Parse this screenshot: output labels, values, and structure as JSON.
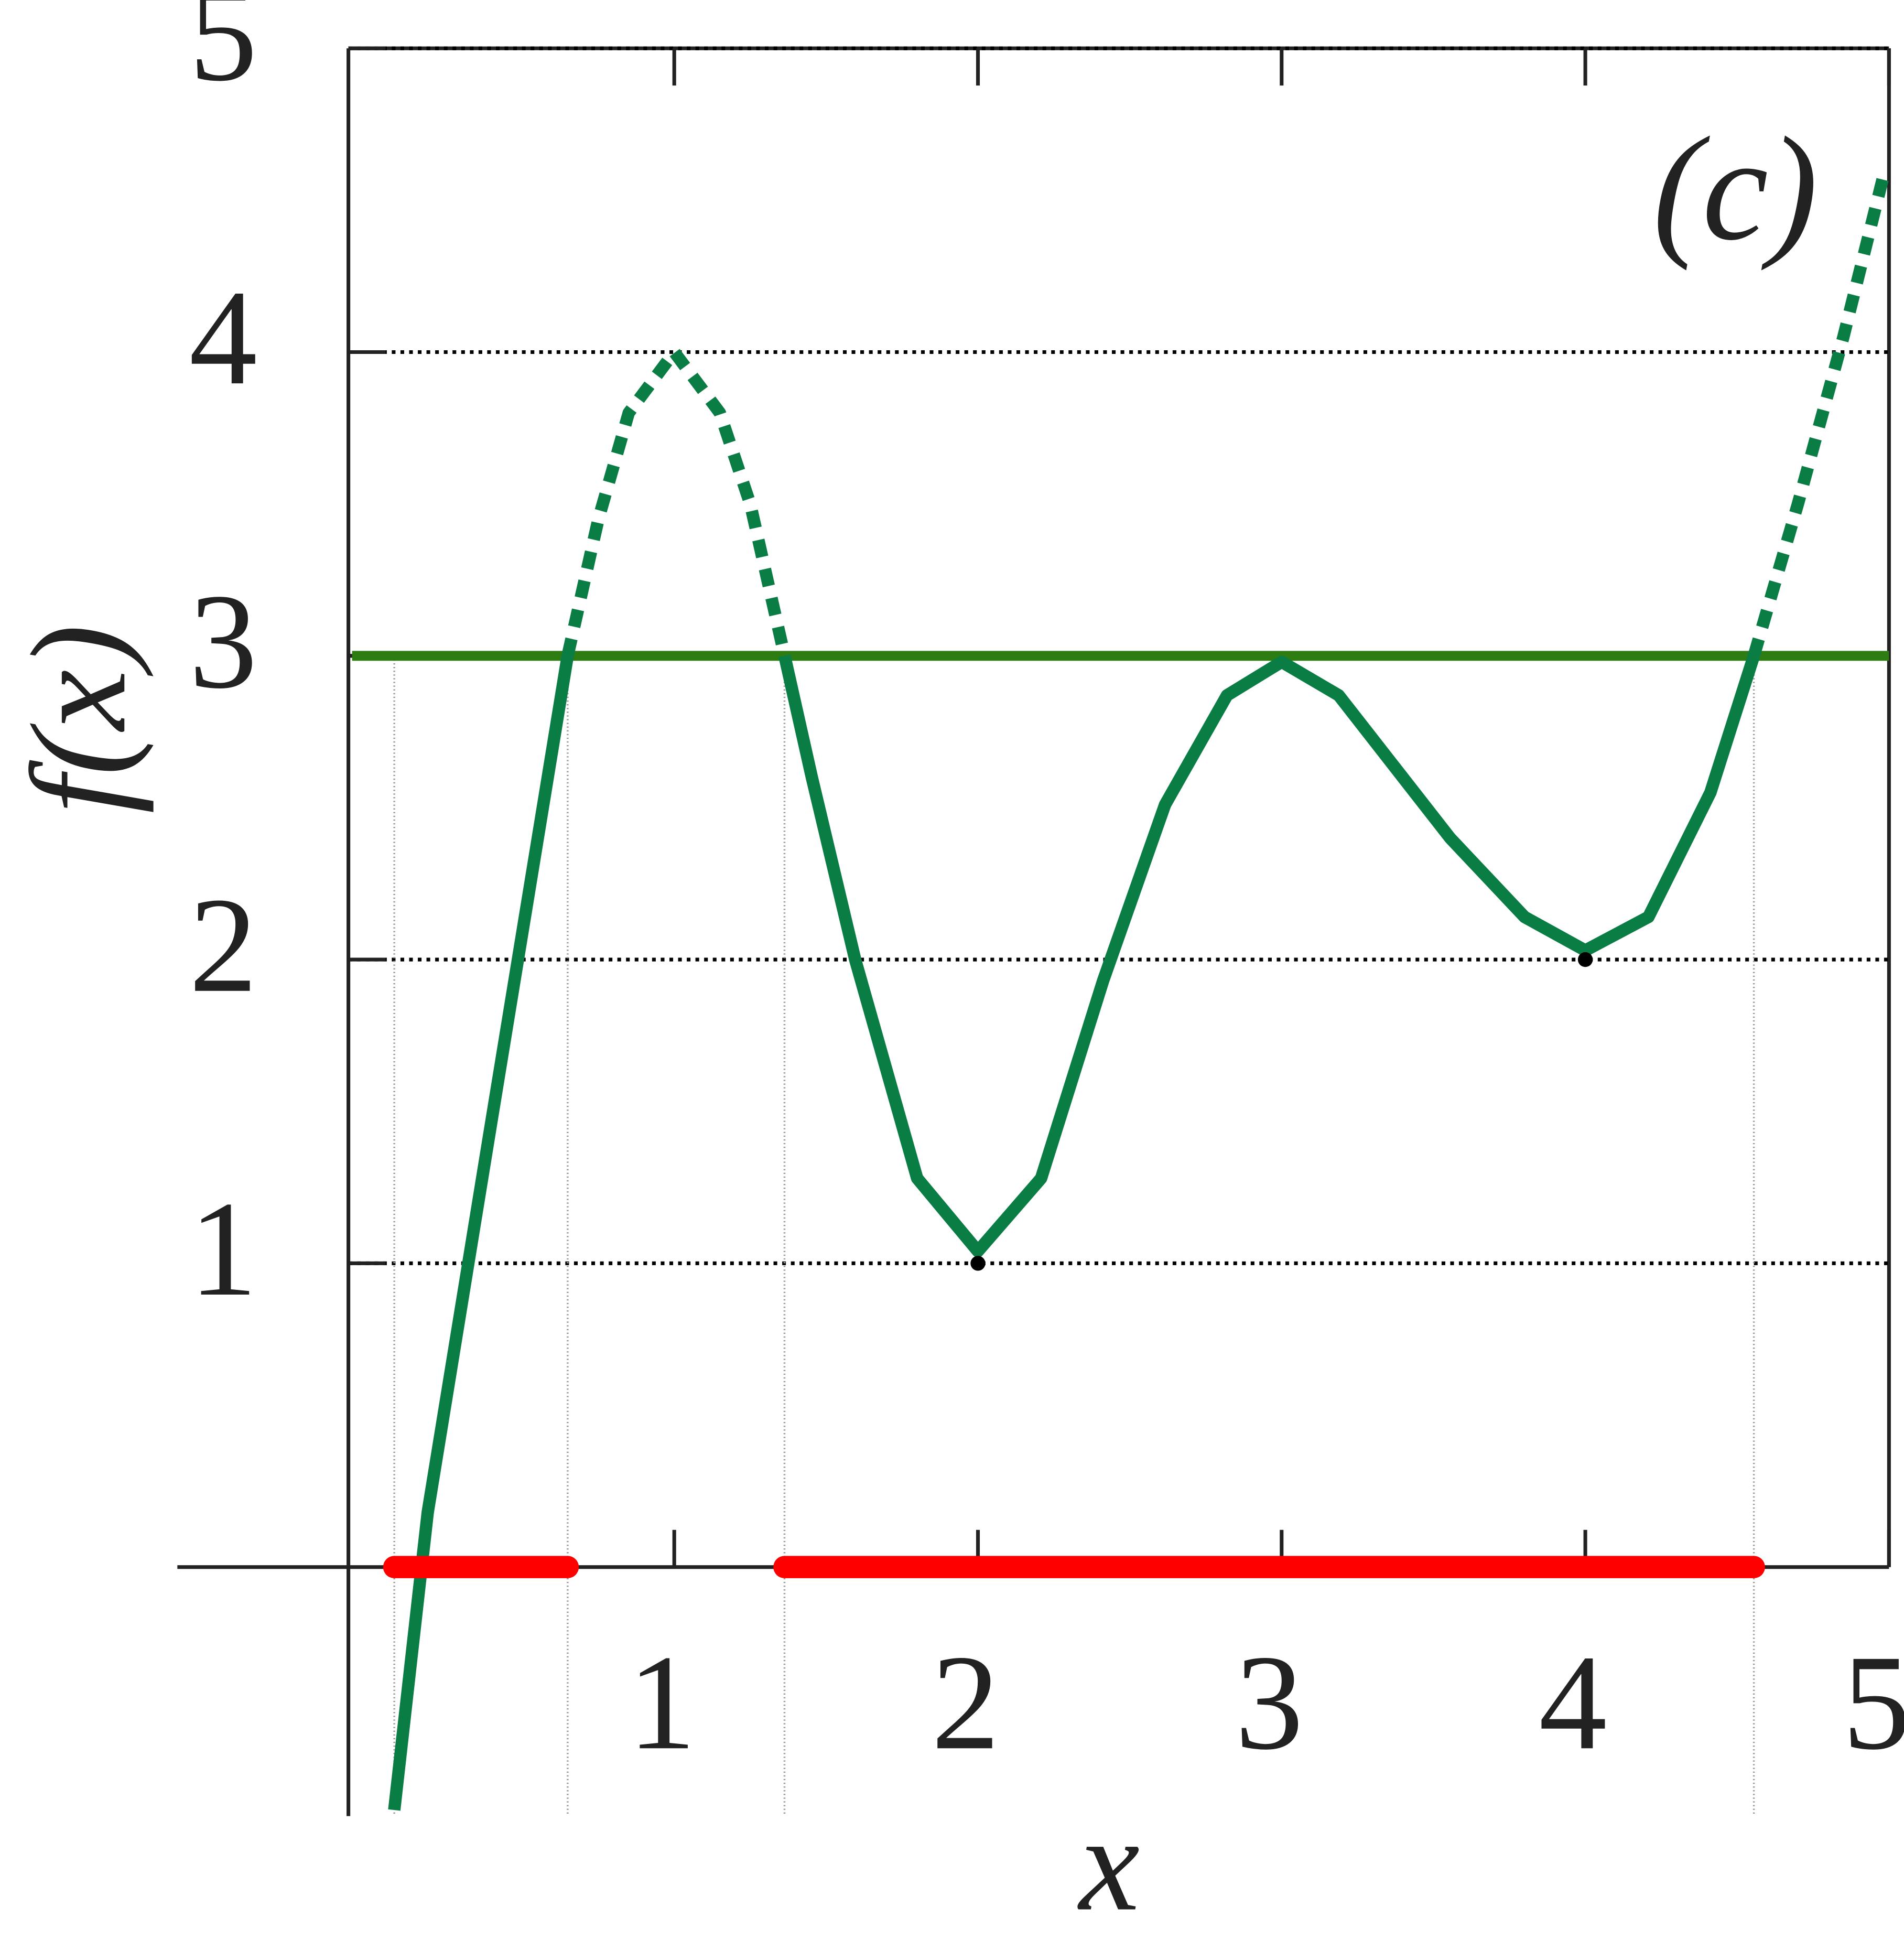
{
  "chart_data": {
    "type": "line",
    "annotation": "(c)",
    "x_label": "x",
    "y_label": "f(x)",
    "x": [
      0.078,
      0.188,
      0.4,
      0.649,
      0.75,
      0.85,
      1,
      1.15,
      1.25,
      1.363,
      1.453,
      1.596,
      1.8,
      2,
      2.208,
      2.412,
      2.616,
      2.82,
      3,
      3.188,
      3.555,
      3.8,
      4,
      4.208,
      4.412,
      4.555,
      4.7,
      4.85,
      4.984
    ],
    "series": [
      {
        "color": "#0a7d45",
        "dashed": false,
        "values": [
          -0.8,
          0.18,
          1.48,
          3,
          null,
          null,
          null,
          null,
          null,
          3,
          2.6,
          2.0,
          1.28,
          1.04,
          1.28,
          1.93,
          2.51,
          2.87,
          2.98,
          2.87,
          2.4,
          2.14,
          2.03,
          2.14,
          2.55,
          3.0,
          null,
          null,
          null
        ]
      },
      {
        "color": "#0a7d45",
        "dashed": true,
        "values": [
          null,
          null,
          null,
          3,
          3.45,
          3.8,
          4,
          3.8,
          3.5,
          3,
          null,
          null,
          null,
          null,
          null,
          null,
          null,
          null,
          null,
          null,
          null,
          null,
          null,
          null,
          null,
          3,
          3.5,
          4.05,
          4.59
        ]
      }
    ],
    "hline": {
      "value": 3,
      "color": "#2e7d12"
    },
    "intervals": {
      "color": "#ff0000",
      "ranges": [
        [
          0.078,
          0.649
        ],
        [
          1.363,
          4.555
        ]
      ]
    },
    "points": {
      "x": [
        2,
        4
      ],
      "y": [
        1,
        2
      ],
      "color": "#000000"
    },
    "xlim": [
      -0.073,
      5
    ],
    "ylim": [
      -0.82,
      5
    ],
    "xticks": [
      1,
      2,
      3,
      4,
      5
    ],
    "yticks": [
      1,
      2,
      3,
      4,
      5
    ],
    "grid": true
  }
}
